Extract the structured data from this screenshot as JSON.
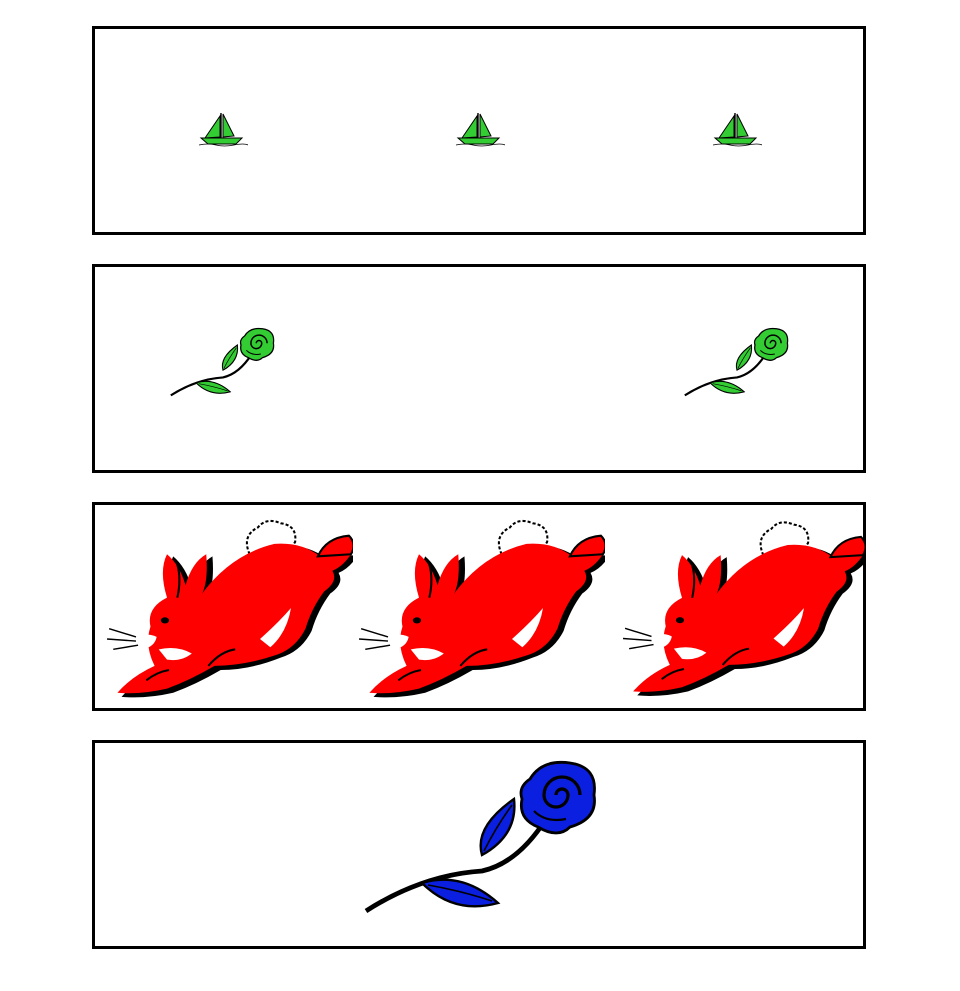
{
  "palette": {
    "boat_green": "#2ecc2e",
    "rose_green": "#33cc33",
    "rabbit_red": "#ff0000",
    "rose_blue": "#0b1fe0",
    "outline": "#000000",
    "background": "#ffffff"
  },
  "panels": [
    {
      "subject": "sailboat-icon",
      "color": "green",
      "count": 3
    },
    {
      "subject": "rose-icon",
      "color": "green",
      "count": 2
    },
    {
      "subject": "rabbit-icon",
      "color": "red",
      "count": 3
    },
    {
      "subject": "rose-icon",
      "color": "blue",
      "count": 1
    }
  ]
}
